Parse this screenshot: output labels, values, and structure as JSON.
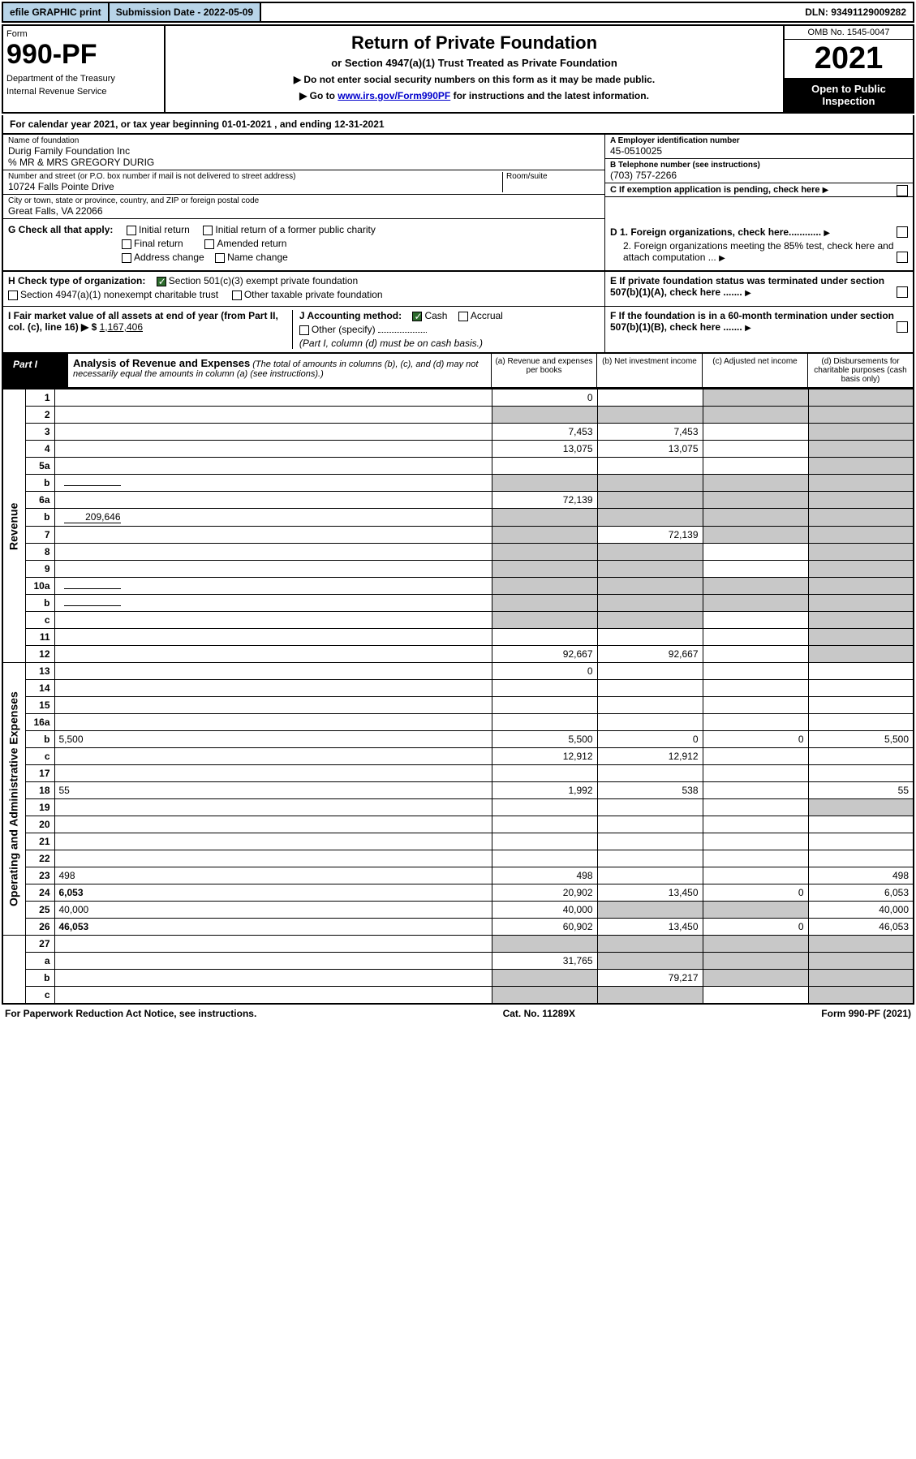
{
  "topbar": {
    "efile": "efile GRAPHIC print",
    "submission": "Submission Date - 2022-05-09",
    "dln": "DLN: 93491129009282"
  },
  "header": {
    "form_word": "Form",
    "form_number": "990-PF",
    "dept": "Department of the Treasury",
    "irs": "Internal Revenue Service",
    "title": "Return of Private Foundation",
    "subtitle": "or Section 4947(a)(1) Trust Treated as Private Foundation",
    "note1": "▶ Do not enter social security numbers on this form as it may be made public.",
    "note2_pre": "▶ Go to ",
    "note2_link": "www.irs.gov/Form990PF",
    "note2_post": " for instructions and the latest information.",
    "omb": "OMB No. 1545-0047",
    "year": "2021",
    "open": "Open to Public Inspection"
  },
  "calyear": "For calendar year 2021, or tax year beginning 01-01-2021          , and ending 12-31-2021",
  "id": {
    "name_label": "Name of foundation",
    "name": "Durig Family Foundation Inc",
    "care_of": "% MR & MRS GREGORY DURIG",
    "addr_label": "Number and street (or P.O. box number if mail is not delivered to street address)",
    "addr": "10724 Falls Pointe Drive",
    "room_label": "Room/suite",
    "city_label": "City or town, state or province, country, and ZIP or foreign postal code",
    "city": "Great Falls, VA  22066",
    "a_label": "A Employer identification number",
    "a_val": "45-0510025",
    "b_label": "B Telephone number (see instructions)",
    "b_val": "(703) 757-2266",
    "c_label": "C If exemption application is pending, check here"
  },
  "g": {
    "label": "G Check all that apply:",
    "initial": "Initial return",
    "initial_former": "Initial return of a former public charity",
    "final": "Final return",
    "amended": "Amended return",
    "address": "Address change",
    "name_change": "Name change"
  },
  "d": {
    "d1": "D 1. Foreign organizations, check here............",
    "d2": "2. Foreign organizations meeting the 85% test, check here and attach computation ..."
  },
  "h": {
    "label": "H Check type of organization:",
    "c3": "Section 501(c)(3) exempt private foundation",
    "trust": "Section 4947(a)(1) nonexempt charitable trust",
    "other_taxable": "Other taxable private foundation"
  },
  "e": "E  If private foundation status was terminated under section 507(b)(1)(A), check here .......",
  "i": {
    "label": "I Fair market value of all assets at end of year (from Part II, col. (c), line 16) ▶ $",
    "val": "1,167,406"
  },
  "j": {
    "label": "J Accounting method:",
    "cash": "Cash",
    "accrual": "Accrual",
    "other": "Other (specify)",
    "note": "(Part I, column (d) must be on cash basis.)"
  },
  "f": "F  If the foundation is in a 60-month termination under section 507(b)(1)(B), check here .......",
  "part1": {
    "label": "Part I",
    "title": "Analysis of Revenue and Expenses",
    "note": "(The total of amounts in columns (b), (c), and (d) may not necessarily equal the amounts in column (a) (see instructions).)",
    "col_a": "(a) Revenue and expenses per books",
    "col_b": "(b) Net investment income",
    "col_c": "(c) Adjusted net income",
    "col_d": "(d) Disbursements for charitable purposes (cash basis only)"
  },
  "sections": {
    "revenue": "Revenue",
    "expenses": "Operating and Administrative Expenses"
  },
  "rows": [
    {
      "n": "1",
      "d": "",
      "a": "0",
      "b": "",
      "c": "",
      "shade_c": true,
      "shade_d": true
    },
    {
      "n": "2",
      "d": "",
      "a": "",
      "b": "",
      "c": "",
      "shade_a": true,
      "shade_b": true,
      "shade_c": true,
      "shade_d": true,
      "bold_not": true
    },
    {
      "n": "3",
      "d": "",
      "a": "7,453",
      "b": "7,453",
      "c": "",
      "shade_d": true
    },
    {
      "n": "4",
      "d": "",
      "a": "13,075",
      "b": "13,075",
      "c": "",
      "shade_d": true
    },
    {
      "n": "5a",
      "d": "",
      "a": "",
      "b": "",
      "c": "",
      "shade_d": true
    },
    {
      "n": "b",
      "d": "",
      "a": "",
      "b": "",
      "c": "",
      "shade_a": true,
      "shade_b": true,
      "shade_c": true,
      "shade_d": true,
      "inline": true
    },
    {
      "n": "6a",
      "d": "",
      "a": "72,139",
      "b": "",
      "c": "",
      "shade_b": true,
      "shade_c": true,
      "shade_d": true
    },
    {
      "n": "b",
      "d": "",
      "a": "",
      "b": "",
      "c": "",
      "shade_a": true,
      "shade_b": true,
      "shade_c": true,
      "shade_d": true,
      "inline": true,
      "inline_val": "209,646"
    },
    {
      "n": "7",
      "d": "",
      "a": "",
      "b": "72,139",
      "c": "",
      "shade_a": true,
      "shade_c": true,
      "shade_d": true
    },
    {
      "n": "8",
      "d": "",
      "a": "",
      "b": "",
      "c": "",
      "shade_a": true,
      "shade_b": true,
      "shade_d": true
    },
    {
      "n": "9",
      "d": "",
      "a": "",
      "b": "",
      "c": "",
      "shade_a": true,
      "shade_b": true,
      "shade_d": true
    },
    {
      "n": "10a",
      "d": "",
      "a": "",
      "b": "",
      "c": "",
      "shade_a": true,
      "shade_b": true,
      "shade_c": true,
      "shade_d": true,
      "inline": true
    },
    {
      "n": "b",
      "d": "",
      "a": "",
      "b": "",
      "c": "",
      "shade_a": true,
      "shade_b": true,
      "shade_c": true,
      "shade_d": true,
      "inline": true
    },
    {
      "n": "c",
      "d": "",
      "a": "",
      "b": "",
      "c": "",
      "shade_a": true,
      "shade_b": true,
      "shade_d": true
    },
    {
      "n": "11",
      "d": "",
      "a": "",
      "b": "",
      "c": "",
      "shade_d": true
    },
    {
      "n": "12",
      "d": "",
      "a": "92,667",
      "b": "92,667",
      "c": "",
      "shade_d": true,
      "bold": true
    }
  ],
  "exp_rows": [
    {
      "n": "13",
      "d": "",
      "a": "0",
      "b": "",
      "c": ""
    },
    {
      "n": "14",
      "d": "",
      "a": "",
      "b": "",
      "c": ""
    },
    {
      "n": "15",
      "d": "",
      "a": "",
      "b": "",
      "c": ""
    },
    {
      "n": "16a",
      "d": "",
      "a": "",
      "b": "",
      "c": ""
    },
    {
      "n": "b",
      "d": "5,500",
      "a": "5,500",
      "b": "0",
      "c": "0"
    },
    {
      "n": "c",
      "d": "",
      "a": "12,912",
      "b": "12,912",
      "c": ""
    },
    {
      "n": "17",
      "d": "",
      "a": "",
      "b": "",
      "c": ""
    },
    {
      "n": "18",
      "d": "55",
      "a": "1,992",
      "b": "538",
      "c": ""
    },
    {
      "n": "19",
      "d": "",
      "a": "",
      "b": "",
      "c": "",
      "shade_d": true
    },
    {
      "n": "20",
      "d": "",
      "a": "",
      "b": "",
      "c": ""
    },
    {
      "n": "21",
      "d": "",
      "a": "",
      "b": "",
      "c": ""
    },
    {
      "n": "22",
      "d": "",
      "a": "",
      "b": "",
      "c": ""
    },
    {
      "n": "23",
      "d": "498",
      "a": "498",
      "b": "",
      "c": ""
    },
    {
      "n": "24",
      "d": "6,053",
      "a": "20,902",
      "b": "13,450",
      "c": "0",
      "bold": true
    },
    {
      "n": "25",
      "d": "40,000",
      "a": "40,000",
      "b": "",
      "c": "",
      "shade_b": true,
      "shade_c": true
    },
    {
      "n": "26",
      "d": "46,053",
      "a": "60,902",
      "b": "13,450",
      "c": "0",
      "bold": true
    }
  ],
  "final_rows": [
    {
      "n": "27",
      "d": "",
      "a": "",
      "b": "",
      "c": "",
      "shade_a": true,
      "shade_b": true,
      "shade_c": true,
      "shade_d": true
    },
    {
      "n": "a",
      "d": "",
      "a": "31,765",
      "b": "",
      "c": "",
      "shade_b": true,
      "shade_c": true,
      "shade_d": true,
      "bold": true
    },
    {
      "n": "b",
      "d": "",
      "a": "",
      "b": "79,217",
      "c": "",
      "shade_a": true,
      "shade_c": true,
      "shade_d": true,
      "bold": true
    },
    {
      "n": "c",
      "d": "",
      "a": "",
      "b": "",
      "c": "",
      "shade_a": true,
      "shade_b": true,
      "shade_d": true,
      "bold": true
    }
  ],
  "footer": {
    "left": "For Paperwork Reduction Act Notice, see instructions.",
    "mid": "Cat. No. 11289X",
    "right": "Form 990-PF (2021)"
  },
  "colors": {
    "header_blue": "#b8d4e8",
    "link": "#0000cc",
    "shade": "#c8c8c8",
    "check_green": "#2d6b2d"
  }
}
